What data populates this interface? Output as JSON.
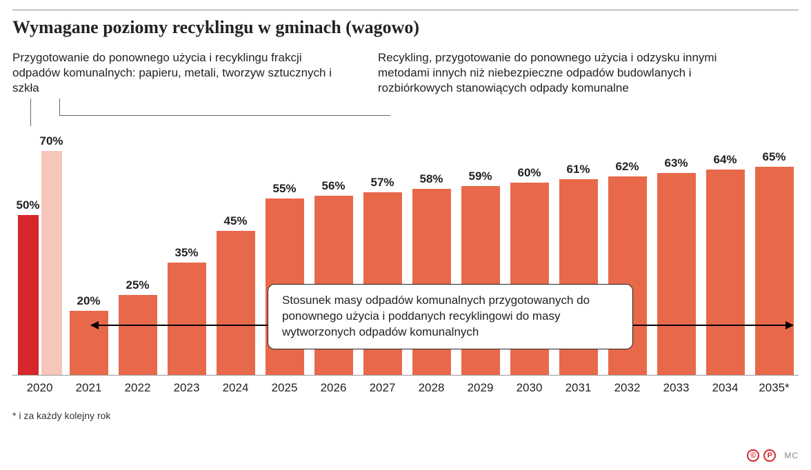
{
  "title": "Wymagane poziomy recyklingu w gminach (wagowo)",
  "legend_left": "Przygotowanie do ponownego użycia i recyklingu frakcji odpadów komunalnych: papieru, metali, tworzyw sztucznych i szkła",
  "legend_right": "Recykling, przygotowanie do ponownego użycia i odzysku innymi metodami innych niż niebezpieczne odpadów budowlanych i rozbiórkowych stanowiących odpady komunalne",
  "chart": {
    "type": "bar",
    "y_max": 75,
    "bar_color_main": "#e8694a",
    "bar_color_accent": "#d7262c",
    "bar_color_light": "#f7c6ba",
    "label_fontsize": 17,
    "label_fontweight": 700,
    "xaxis_fontsize": 17,
    "background_color": "#ffffff",
    "categories": [
      "2020",
      "2021",
      "2022",
      "2023",
      "2024",
      "2025",
      "2026",
      "2027",
      "2028",
      "2029",
      "2030",
      "2031",
      "2032",
      "2033",
      "2034",
      "2035*"
    ],
    "years": [
      {
        "year": "2020",
        "bars": [
          {
            "v": 50,
            "label": "50%",
            "color": "#d7262c"
          },
          {
            "v": 70,
            "label": "70%",
            "color": "#f7c6ba"
          }
        ]
      },
      {
        "year": "2021",
        "bars": [
          {
            "v": 20,
            "label": "20%",
            "color": "#e8694a"
          }
        ]
      },
      {
        "year": "2022",
        "bars": [
          {
            "v": 25,
            "label": "25%",
            "color": "#e8694a"
          }
        ]
      },
      {
        "year": "2023",
        "bars": [
          {
            "v": 35,
            "label": "35%",
            "color": "#e8694a"
          }
        ]
      },
      {
        "year": "2024",
        "bars": [
          {
            "v": 45,
            "label": "45%",
            "color": "#e8694a"
          }
        ]
      },
      {
        "year": "2025",
        "bars": [
          {
            "v": 55,
            "label": "55%",
            "color": "#e8694a"
          }
        ]
      },
      {
        "year": "2026",
        "bars": [
          {
            "v": 56,
            "label": "56%",
            "color": "#e8694a"
          }
        ]
      },
      {
        "year": "2027",
        "bars": [
          {
            "v": 57,
            "label": "57%",
            "color": "#e8694a"
          }
        ]
      },
      {
        "year": "2028",
        "bars": [
          {
            "v": 58,
            "label": "58%",
            "color": "#e8694a"
          }
        ]
      },
      {
        "year": "2029",
        "bars": [
          {
            "v": 59,
            "label": "59%",
            "color": "#e8694a"
          }
        ]
      },
      {
        "year": "2030",
        "bars": [
          {
            "v": 60,
            "label": "60%",
            "color": "#e8694a"
          }
        ]
      },
      {
        "year": "2031",
        "bars": [
          {
            "v": 61,
            "label": "61%",
            "color": "#e8694a"
          }
        ]
      },
      {
        "year": "2032",
        "bars": [
          {
            "v": 62,
            "label": "62%",
            "color": "#e8694a"
          }
        ]
      },
      {
        "year": "2033",
        "bars": [
          {
            "v": 63,
            "label": "63%",
            "color": "#e8694a"
          }
        ]
      },
      {
        "year": "2034",
        "bars": [
          {
            "v": 64,
            "label": "64%",
            "color": "#e8694a"
          }
        ]
      },
      {
        "year": "2035*",
        "bars": [
          {
            "v": 65,
            "label": "65%",
            "color": "#e8694a"
          }
        ]
      }
    ]
  },
  "overlay_text": "Stosunek masy odpadów komunalnych przygotowanych do ponownego użycia i poddanych recyklingowi do masy wytworzonych odpadów komunalnych",
  "footnote": "* i za każdy kolejny rok",
  "credits": {
    "badge1": "©",
    "badge2": "P",
    "author": "MC"
  }
}
